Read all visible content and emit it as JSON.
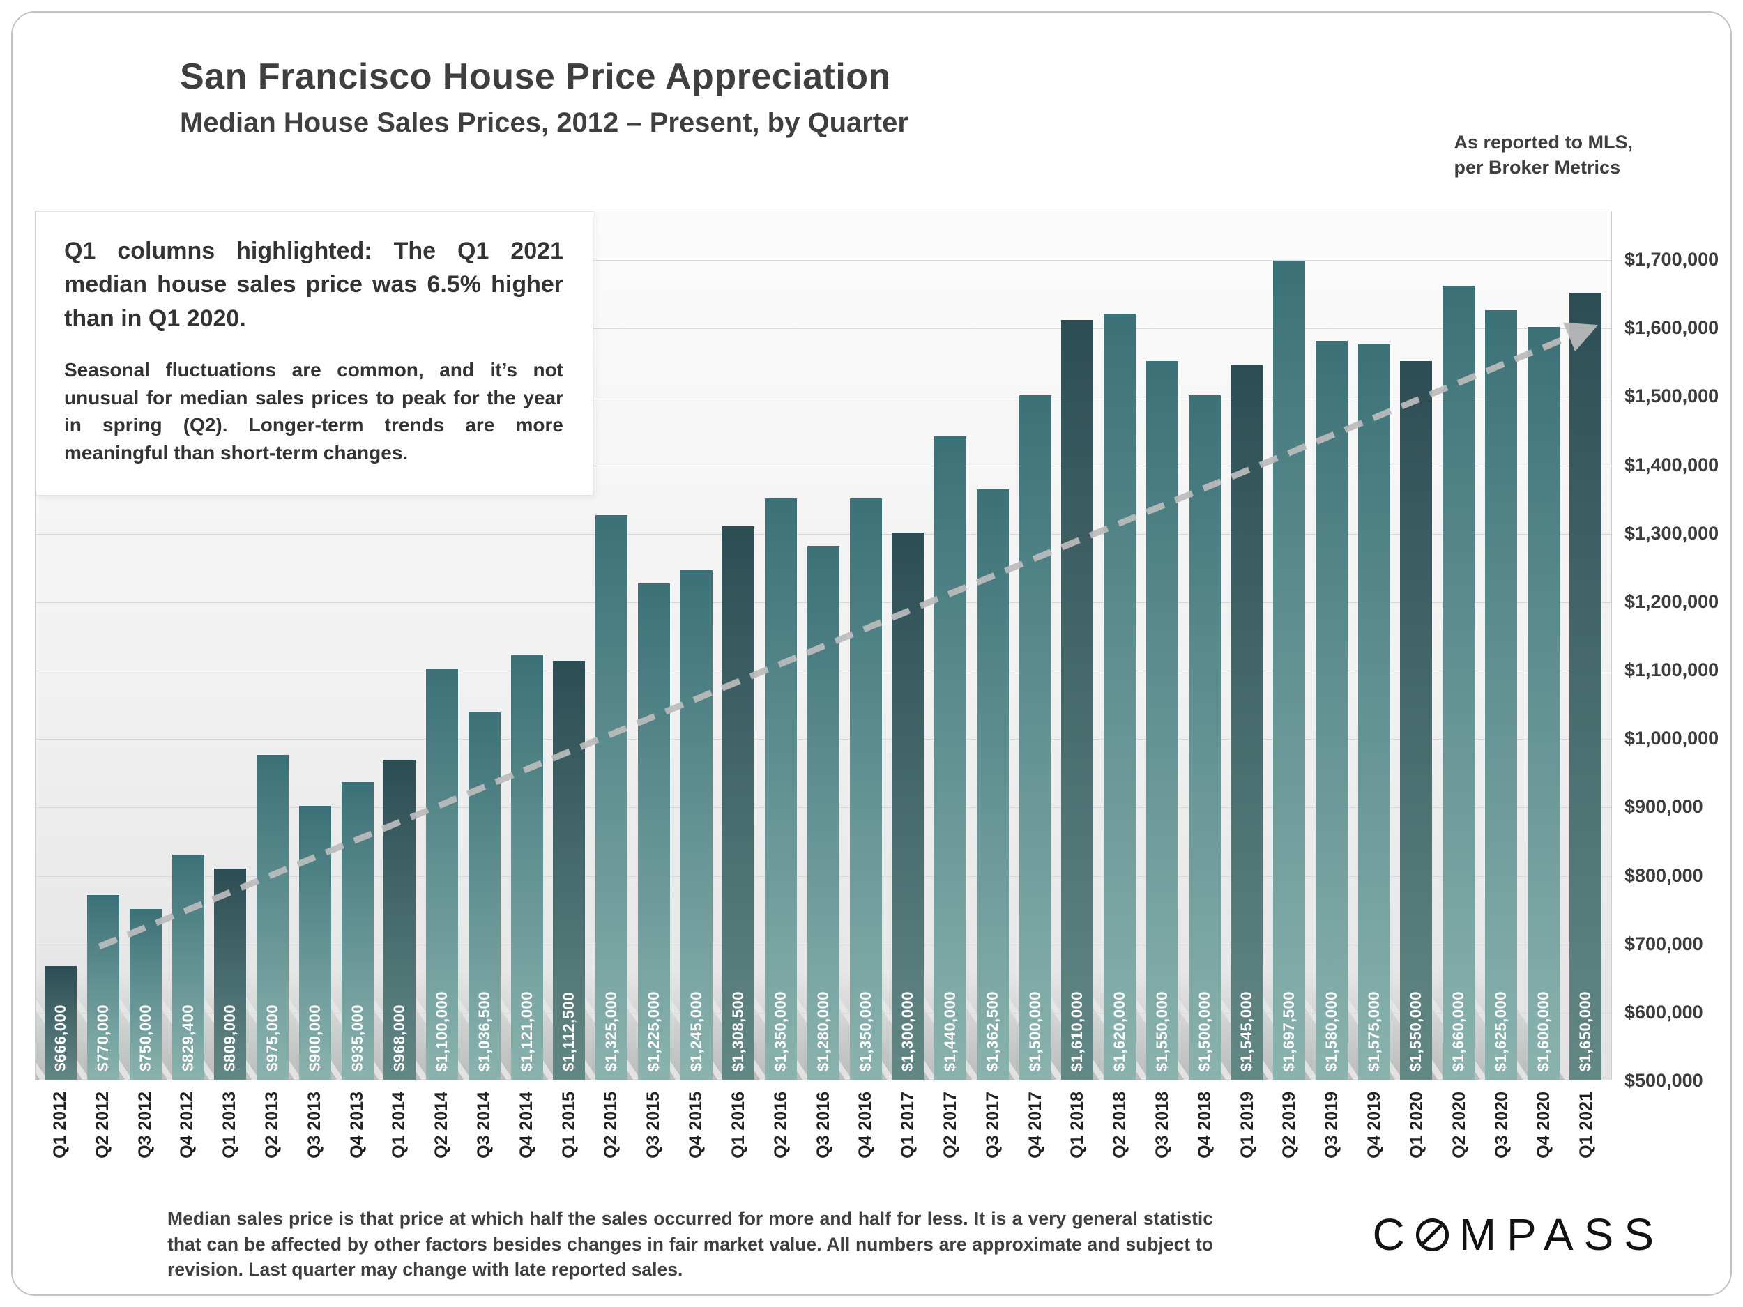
{
  "header": {
    "title": "San Francisco House Price Appreciation",
    "subtitle": "Median House Sales Prices, 2012 – Present, by Quarter",
    "source_note_line1": "As reported to MLS,",
    "source_note_line2": "per Broker Metrics"
  },
  "annotation": {
    "headline": "Q1 columns highlighted: The Q1 2021 median house sales price was 6.5% higher than in Q1 2020.",
    "body": "Seasonal fluctuations are common, and it’s not unusual for median sales prices to peak for the year in spring (Q2). Longer-term trends are more meaningful than short-term changes."
  },
  "footer": {
    "disclaimer": "Median sales price is that price at which half the sales occurred for more and half for less. It is a very general statistic that can be affected by other factors besides changes in fair market value. All numbers are approximate and subject to revision. Last quarter may change with late reported sales.",
    "brand": "COMPASS"
  },
  "chart_data": {
    "type": "bar",
    "title": "San Francisco House Price Appreciation",
    "subtitle": "Median House Sales Prices, 2012 – Present, by Quarter",
    "categories": [
      "Q1 2012",
      "Q2 2012",
      "Q3 2012",
      "Q4 2012",
      "Q1 2013",
      "Q2 2013",
      "Q3 2013",
      "Q4 2013",
      "Q1 2014",
      "Q2 2014",
      "Q3 2014",
      "Q4 2014",
      "Q1 2015",
      "Q2 2015",
      "Q3 2015",
      "Q4 2015",
      "Q1 2016",
      "Q2 2016",
      "Q3 2016",
      "Q4 2016",
      "Q1 2017",
      "Q2 2017",
      "Q3 2017",
      "Q4 2017",
      "Q1 2018",
      "Q2 2018",
      "Q3 2018",
      "Q4 2018",
      "Q1 2019",
      "Q2 2019",
      "Q3 2019",
      "Q4 2019",
      "Q1 2020",
      "Q2 2020",
      "Q3 2020",
      "Q4 2020",
      "Q1 2021"
    ],
    "values": [
      666000,
      770000,
      750000,
      829400,
      809000,
      975000,
      900000,
      935000,
      968000,
      1100000,
      1036500,
      1121000,
      1112500,
      1325000,
      1225000,
      1245000,
      1308500,
      1350000,
      1280000,
      1350000,
      1300000,
      1440000,
      1362500,
      1500000,
      1610000,
      1620000,
      1550000,
      1500000,
      1545000,
      1697500,
      1580000,
      1575000,
      1550000,
      1660000,
      1625000,
      1600000,
      1650000
    ],
    "value_labels": [
      "$666,000",
      "$770,000",
      "$750,000",
      "$829,400",
      "$809,000",
      "$975,000",
      "$900,000",
      "$935,000",
      "$968,000",
      "$1,100,000",
      "$1,036,500",
      "$1,121,000",
      "$1,112,500",
      "$1,325,000",
      "$1,225,000",
      "$1,245,000",
      "$1,308,500",
      "$1,350,000",
      "$1,280,000",
      "$1,350,000",
      "$1,300,000",
      "$1,440,000",
      "$1,362,500",
      "$1,500,000",
      "$1,610,000",
      "$1,620,000",
      "$1,550,000",
      "$1,500,000",
      "$1,545,000",
      "$1,697,500",
      "$1,580,000",
      "$1,575,000",
      "$1,550,000",
      "$1,660,000",
      "$1,625,000",
      "$1,600,000",
      "$1,650,000"
    ],
    "highlighted_indices": [
      0,
      4,
      8,
      12,
      16,
      20,
      24,
      28,
      32,
      36
    ],
    "highlight_rule": "Q1 columns highlighted",
    "ylim": [
      500000,
      1700000
    ],
    "y_tick_values": [
      500000,
      600000,
      700000,
      800000,
      900000,
      1000000,
      1100000,
      1200000,
      1300000,
      1400000,
      1500000,
      1600000,
      1700000
    ],
    "y_tick_labels": [
      "$500,000",
      "$600,000",
      "$700,000",
      "$800,000",
      "$900,000",
      "$1,000,000",
      "$1,100,000",
      "$1,200,000",
      "$1,300,000",
      "$1,400,000",
      "$1,500,000",
      "$1,600,000",
      "$1,700,000"
    ],
    "grid": true,
    "legend_position": "none",
    "trend_arrow": {
      "style": "dashed",
      "from_index": 1,
      "from_value": 695000,
      "to_index": 36,
      "to_value": 1600000
    },
    "colors": {
      "bar_gradient_top": "#3b7177",
      "bar_gradient_bottom": "#8ab3ae",
      "highlight_gradient_top": "#2d4d54",
      "highlight_gradient_bottom": "#628885",
      "trend_line": "#bcbcbc",
      "value_label_text": "#ffffff"
    }
  }
}
